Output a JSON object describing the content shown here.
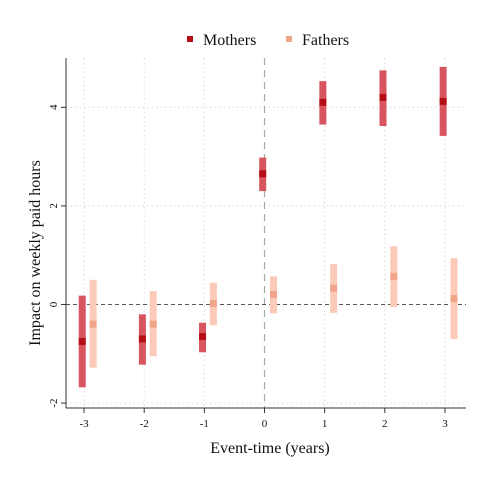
{
  "chart_data": {
    "type": "scatter",
    "title": "",
    "xlabel": "Event-time (years)",
    "ylabel": "Impact on weekly paid hours",
    "x": [
      -3,
      -2,
      -1,
      0,
      1,
      2,
      3
    ],
    "xlim": [
      -3.3,
      3.35
    ],
    "ylim": [
      -2.1,
      5.0
    ],
    "xticks": [
      -3,
      -2,
      -1,
      0,
      1,
      2,
      3
    ],
    "yticks": [
      -2,
      0,
      2,
      4
    ],
    "grid": true,
    "reference_lines": {
      "vertical_x": 0,
      "horizontal_y": 0
    },
    "legend_position": "top",
    "series": [
      {
        "name": "Mothers",
        "color": "#b50f15",
        "ci_color": "#d85560",
        "values": [
          -0.75,
          -0.7,
          -0.65,
          2.65,
          4.1,
          4.2,
          4.12
        ],
        "ci_low": [
          -1.68,
          -1.22,
          -0.97,
          2.3,
          3.65,
          3.62,
          3.42
        ],
        "ci_high": [
          0.18,
          -0.2,
          -0.37,
          2.98,
          4.53,
          4.75,
          4.82
        ]
      },
      {
        "name": "Fathers",
        "color": "#f0a488",
        "ci_color": "#fbcab8",
        "values": [
          -0.4,
          -0.4,
          0.02,
          0.2,
          0.33,
          0.57,
          0.12
        ],
        "ci_low": [
          -1.28,
          -1.05,
          -0.42,
          -0.18,
          -0.17,
          -0.05,
          -0.7
        ],
        "ci_high": [
          0.5,
          0.27,
          0.44,
          0.57,
          0.82,
          1.18,
          0.94
        ]
      }
    ]
  }
}
